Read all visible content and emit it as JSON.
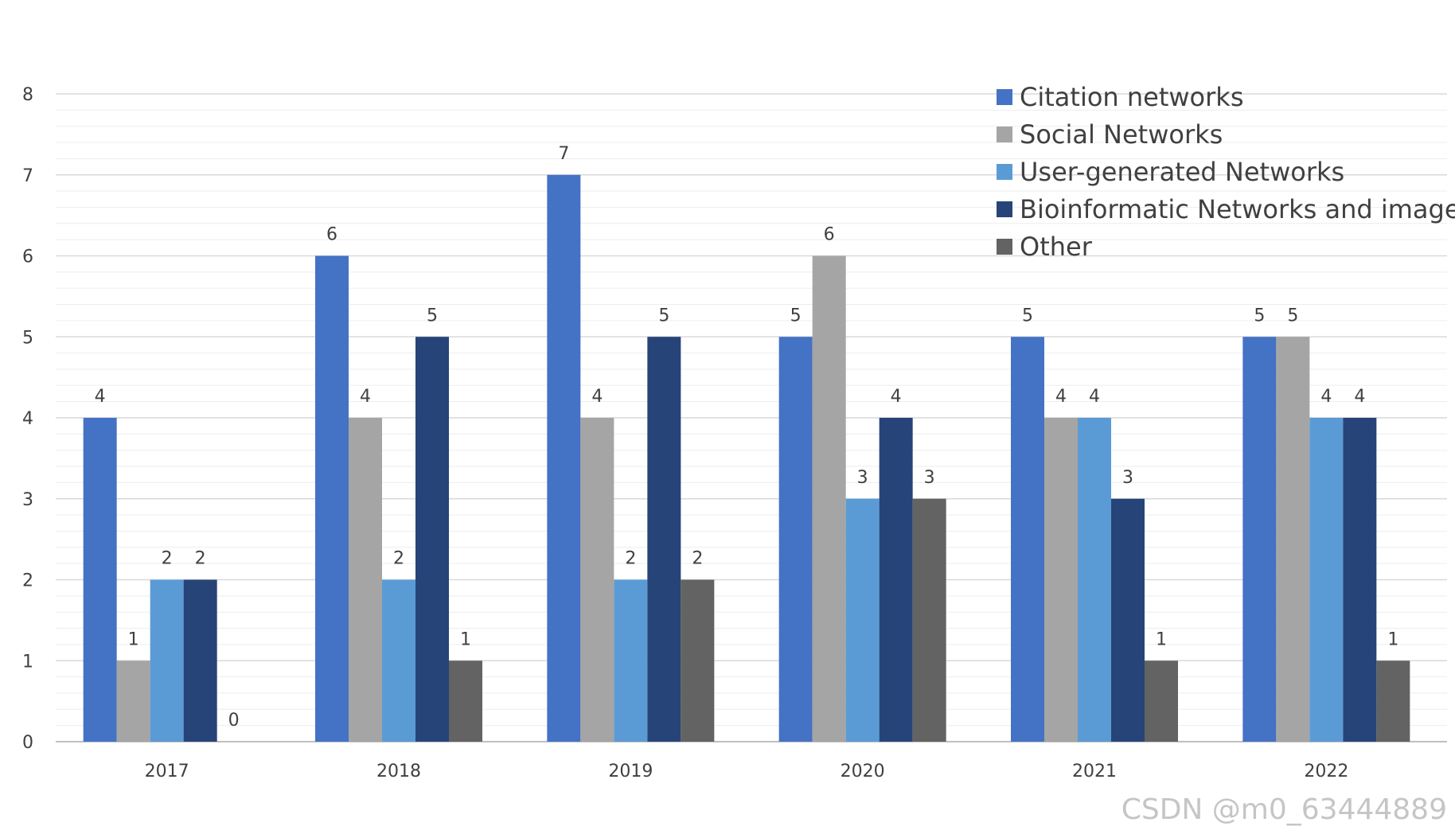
{
  "chart_data": {
    "type": "bar",
    "title": "",
    "xlabel": "",
    "ylabel": "",
    "categories": [
      "2017",
      "2018",
      "2019",
      "2020",
      "2021",
      "2022"
    ],
    "series": [
      {
        "name": "Citation networks",
        "values": [
          4,
          6,
          7,
          5,
          5,
          5
        ],
        "color": "#4472C4"
      },
      {
        "name": "Social Networks",
        "values": [
          1,
          4,
          4,
          6,
          4,
          5
        ],
        "color": "#A5A5A5"
      },
      {
        "name": "User-generated Networks",
        "values": [
          2,
          2,
          2,
          3,
          4,
          4
        ],
        "color": "#5B9BD5"
      },
      {
        "name": "Bioinformatic Networks and images",
        "values": [
          2,
          5,
          5,
          4,
          3,
          4
        ],
        "color": "#264478"
      },
      {
        "name": "Other",
        "values": [
          0,
          1,
          2,
          3,
          1,
          1
        ],
        "color": "#636363"
      }
    ],
    "ylim": [
      0,
      8
    ],
    "yticks": [
      0,
      1,
      2,
      3,
      4,
      5,
      6,
      7,
      8
    ],
    "grid": true,
    "legend_position": "top-right",
    "data_labels": true
  },
  "watermark": "CSDN @m0_63444889"
}
